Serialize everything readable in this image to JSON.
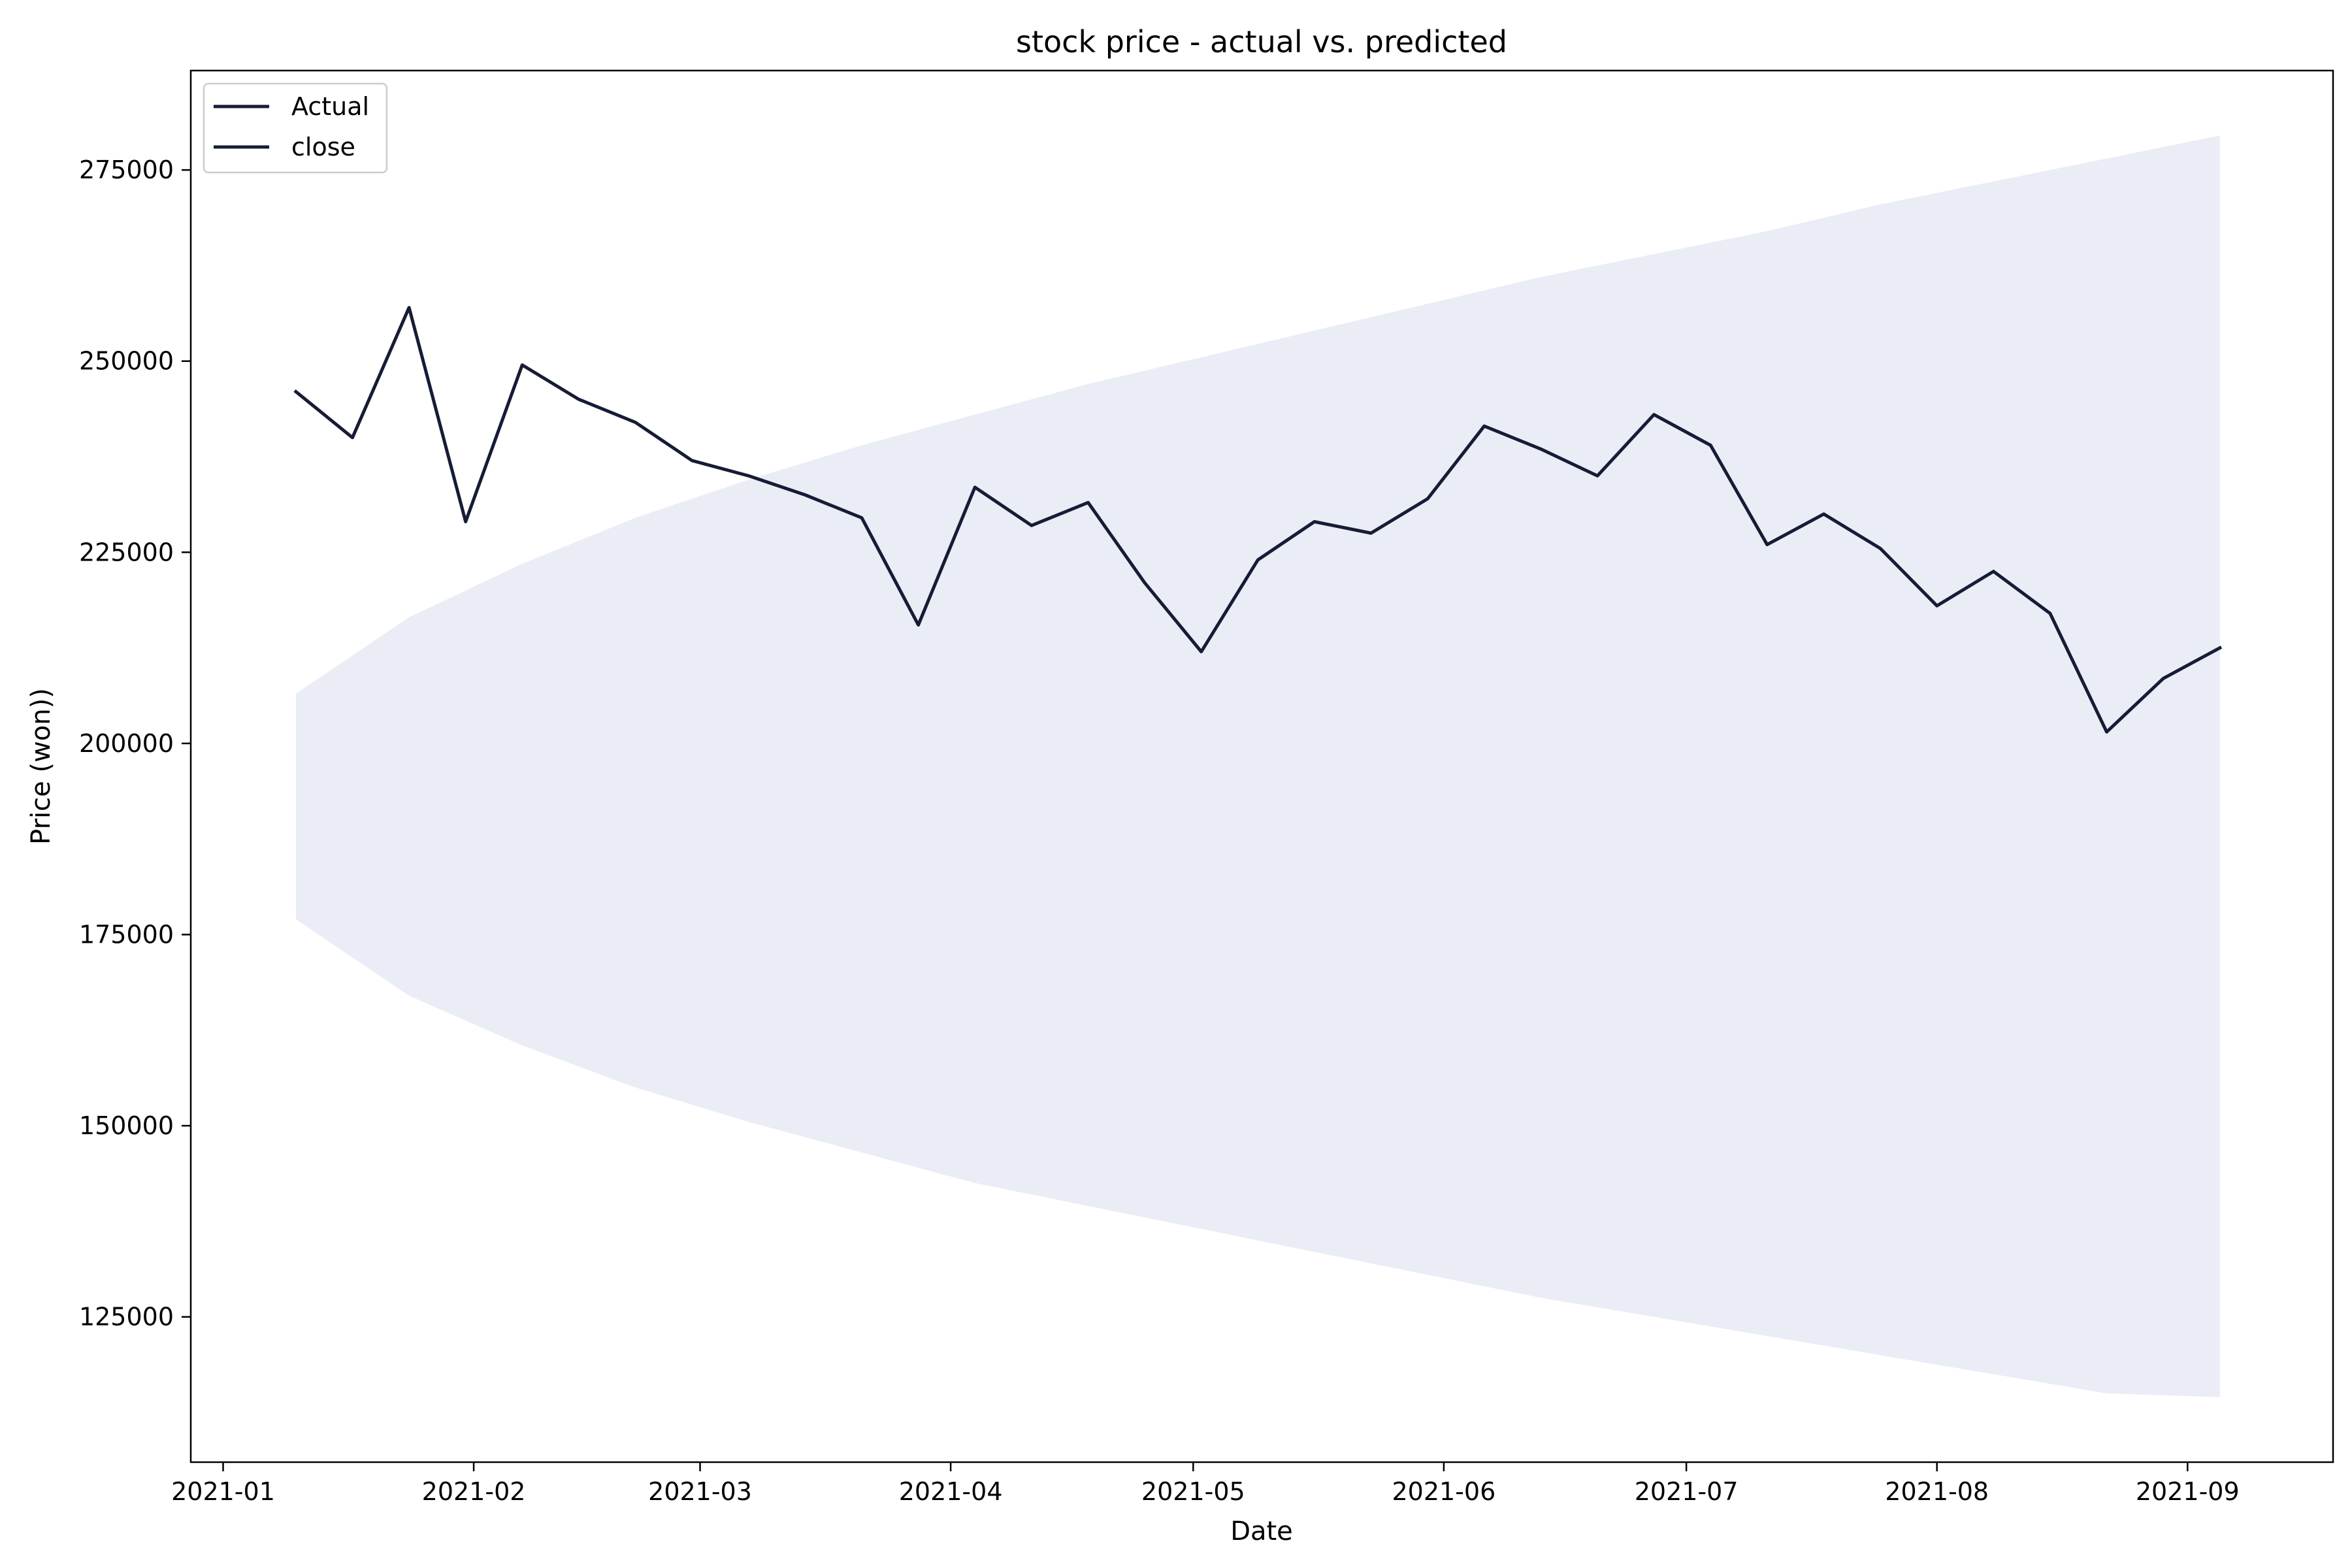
{
  "chart_data": {
    "type": "line",
    "title": "stock price - actual vs. predicted",
    "xlabel": "Date",
    "ylabel": "Price (won))",
    "x_ticks": [
      "2021-01",
      "2021-02",
      "2021-03",
      "2021-04",
      "2021-05",
      "2021-06",
      "2021-07",
      "2021-08",
      "2021-09"
    ],
    "y_ticks": [
      125000,
      150000,
      175000,
      200000,
      225000,
      250000,
      275000
    ],
    "xlim": [
      "2020-12-28",
      "2021-09-19"
    ],
    "ylim": [
      106000,
      288000
    ],
    "grid": false,
    "legend": {
      "placement": "top-left",
      "entries": [
        "Actual",
        "close"
      ]
    },
    "colors": {
      "line": "#161c36",
      "band": "#eaedf5"
    },
    "series": [
      {
        "name": "Actual",
        "x": [
          "2021-01-10",
          "2021-01-17",
          "2021-01-24",
          "2021-01-31",
          "2021-02-07",
          "2021-02-14",
          "2021-02-21",
          "2021-02-28",
          "2021-03-07",
          "2021-03-14",
          "2021-03-21",
          "2021-03-28",
          "2021-04-04",
          "2021-04-11",
          "2021-04-18",
          "2021-04-25",
          "2021-05-02",
          "2021-05-09",
          "2021-05-16",
          "2021-05-23",
          "2021-05-30",
          "2021-06-06",
          "2021-06-13",
          "2021-06-20",
          "2021-06-27",
          "2021-07-04",
          "2021-07-11",
          "2021-07-18",
          "2021-07-25",
          "2021-08-01",
          "2021-08-08",
          "2021-08-15",
          "2021-08-22",
          "2021-08-29",
          "2021-09-05"
        ],
        "values": [
          246000,
          240000,
          257000,
          229000,
          249500,
          245000,
          242000,
          237000,
          235000,
          232500,
          229500,
          215500,
          233500,
          228500,
          231500,
          221000,
          212000,
          224000,
          229000,
          227500,
          232000,
          241500,
          238500,
          235000,
          243000,
          239000,
          226000,
          230000,
          225500,
          218000,
          222500,
          217000,
          201500,
          208500,
          212500
        ]
      }
    ],
    "band": {
      "x": [
        "2021-01-10",
        "2021-01-24",
        "2021-02-07",
        "2021-02-21",
        "2021-03-07",
        "2021-03-21",
        "2021-04-04",
        "2021-04-18",
        "2021-05-02",
        "2021-05-16",
        "2021-05-30",
        "2021-06-13",
        "2021-06-27",
        "2021-07-11",
        "2021-07-25",
        "2021-08-08",
        "2021-08-22",
        "2021-09-05"
      ],
      "upper": [
        206500,
        216500,
        223500,
        229500,
        234500,
        239000,
        243000,
        247000,
        250500,
        254000,
        257500,
        261000,
        264000,
        267000,
        270500,
        273500,
        276500,
        279500
      ],
      "lower": [
        177000,
        167000,
        160500,
        155000,
        150500,
        146500,
        142500,
        139500,
        136500,
        133500,
        130500,
        127500,
        125000,
        122500,
        120000,
        117500,
        115000,
        114500
      ]
    }
  }
}
